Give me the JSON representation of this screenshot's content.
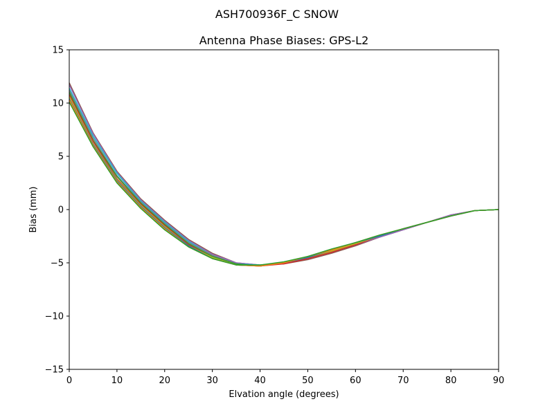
{
  "figure": {
    "suptitle": "ASH700936F_C    SNOW"
  },
  "chart_data": {
    "type": "line",
    "title": "Antenna Phase Biases: GPS-L2",
    "xlabel": "Elvation angle (degrees)",
    "ylabel": "Bias (mm)",
    "xlim": [
      0,
      90
    ],
    "ylim": [
      -15,
      15
    ],
    "xticks": [
      0,
      10,
      20,
      30,
      40,
      50,
      60,
      70,
      80,
      90
    ],
    "xtick_labels": [
      "0",
      "10",
      "20",
      "30",
      "40",
      "50",
      "60",
      "70",
      "80",
      "90"
    ],
    "yticks": [
      -15,
      -10,
      -5,
      0,
      5,
      10,
      15
    ],
    "ytick_labels": [
      "−15",
      "−10",
      "−5",
      "0",
      "5",
      "10",
      "15"
    ],
    "grid": false,
    "x": [
      0,
      5,
      10,
      15,
      20,
      25,
      30,
      35,
      40,
      45,
      50,
      55,
      60,
      65,
      70,
      75,
      80,
      85,
      90
    ],
    "series": [
      {
        "color": "#8c564b",
        "values": [
          11.9,
          7.2,
          3.6,
          1.0,
          -1.0,
          -2.8,
          -4.1,
          -5.0,
          -5.2,
          -5.1,
          -4.7,
          -4.1,
          -3.4,
          -2.6,
          -1.9,
          -1.2,
          -0.5,
          -0.1,
          0.0
        ]
      },
      {
        "color": "#9467bd",
        "values": [
          11.7,
          7.1,
          3.5,
          0.9,
          -1.1,
          -2.9,
          -4.2,
          -5.0,
          -5.2,
          -5.0,
          -4.6,
          -4.0,
          -3.3,
          -2.6,
          -1.9,
          -1.2,
          -0.5,
          -0.1,
          0.0
        ]
      },
      {
        "color": "#17becf",
        "values": [
          11.4,
          6.9,
          3.4,
          0.8,
          -1.2,
          -3.0,
          -4.3,
          -5.1,
          -5.2,
          -5.0,
          -4.5,
          -3.9,
          -3.2,
          -2.5,
          -1.8,
          -1.2,
          -0.6,
          -0.1,
          0.0
        ]
      },
      {
        "color": "#7f7f7f",
        "values": [
          11.2,
          6.7,
          3.2,
          0.7,
          -1.3,
          -3.1,
          -4.3,
          -5.1,
          -5.3,
          -5.0,
          -4.5,
          -3.9,
          -3.2,
          -2.5,
          -1.8,
          -1.2,
          -0.6,
          -0.1,
          0.0
        ]
      },
      {
        "color": "#2ca02c",
        "values": [
          11.0,
          6.5,
          3.1,
          0.6,
          -1.4,
          -3.2,
          -4.4,
          -5.1,
          -5.3,
          -5.0,
          -4.5,
          -3.9,
          -3.2,
          -2.5,
          -1.8,
          -1.2,
          -0.6,
          -0.1,
          0.0
        ]
      },
      {
        "color": "#d62728",
        "values": [
          10.8,
          6.4,
          2.9,
          0.5,
          -1.5,
          -3.3,
          -4.5,
          -5.2,
          -5.3,
          -5.1,
          -4.6,
          -4.0,
          -3.3,
          -2.5,
          -1.8,
          -1.2,
          -0.6,
          -0.1,
          0.0
        ]
      },
      {
        "color": "#bcbd22",
        "values": [
          10.6,
          6.2,
          2.8,
          0.4,
          -1.6,
          -3.4,
          -4.5,
          -5.2,
          -5.3,
          -5.0,
          -4.5,
          -3.9,
          -3.2,
          -2.5,
          -1.8,
          -1.2,
          -0.6,
          -0.1,
          0.0
        ]
      },
      {
        "color": "#1f77b4",
        "values": [
          10.4,
          6.1,
          2.7,
          0.3,
          -1.7,
          -3.4,
          -4.6,
          -5.2,
          -5.3,
          -5.0,
          -4.5,
          -3.8,
          -3.1,
          -2.5,
          -1.8,
          -1.2,
          -0.6,
          -0.1,
          0.0
        ]
      },
      {
        "color": "#ff7f0e",
        "values": [
          10.3,
          6.0,
          2.6,
          0.2,
          -1.8,
          -3.5,
          -4.6,
          -5.2,
          -5.3,
          -5.0,
          -4.4,
          -3.8,
          -3.1,
          -2.4,
          -1.8,
          -1.2,
          -0.6,
          -0.1,
          0.0
        ]
      },
      {
        "color": "#2ca02c",
        "values": [
          10.1,
          5.9,
          2.5,
          0.1,
          -1.9,
          -3.5,
          -4.6,
          -5.2,
          -5.2,
          -4.9,
          -4.4,
          -3.7,
          -3.1,
          -2.4,
          -1.8,
          -1.2,
          -0.6,
          -0.1,
          0.0
        ]
      }
    ]
  }
}
